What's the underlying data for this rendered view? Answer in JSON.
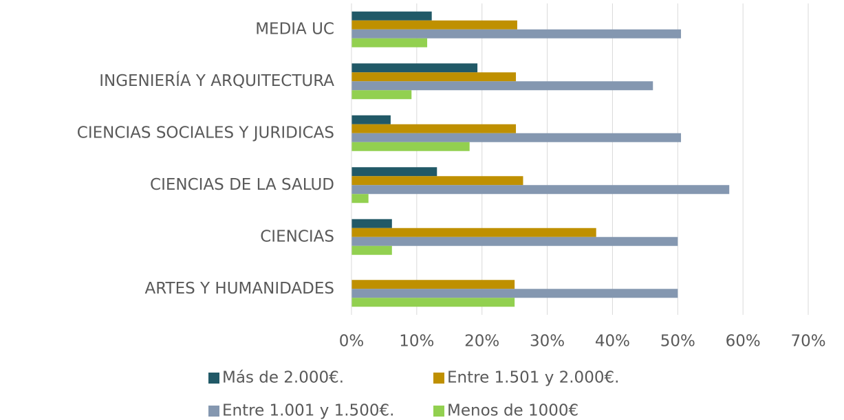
{
  "chart_data": {
    "type": "bar",
    "orientation": "horizontal",
    "categories": [
      "MEDIA UC",
      "INGENIERÍA Y ARQUITECTURA",
      "CIENCIAS SOCIALES Y JURIDICAS",
      "CIENCIAS DE LA SALUD",
      "CIENCIAS",
      "ARTES Y HUMANIDADES"
    ],
    "series": [
      {
        "name": "Más de 2.000€.",
        "color": "#215967",
        "values": [
          12.3,
          19.3,
          6,
          13.1,
          6.2,
          0
        ]
      },
      {
        "name": "Entre 1.501 y 2.000€.",
        "color": "#bf9000",
        "values": [
          25.4,
          25.2,
          25.2,
          26.3,
          37.5,
          25
        ]
      },
      {
        "name": "Entre 1.001 y 1.500€.",
        "color": "#8497b0",
        "values": [
          50.5,
          46.2,
          50.5,
          57.9,
          50,
          50
        ]
      },
      {
        "name": "Menos de 1000€",
        "color": "#92d050",
        "values": [
          11.6,
          9.2,
          18.1,
          2.6,
          6.2,
          25
        ]
      }
    ],
    "xlim": [
      0,
      70
    ],
    "xticks": [
      {
        "value": 0,
        "label": "0%"
      },
      {
        "value": 10,
        "label": "10%"
      },
      {
        "value": 20,
        "label": "20%"
      },
      {
        "value": 30,
        "label": "30%"
      },
      {
        "value": 40,
        "label": "40%"
      },
      {
        "value": 50,
        "label": "50%"
      },
      {
        "value": 60,
        "label": "60%"
      },
      {
        "value": 70,
        "label": "70%"
      }
    ],
    "grid": true,
    "legend": "bottom"
  }
}
